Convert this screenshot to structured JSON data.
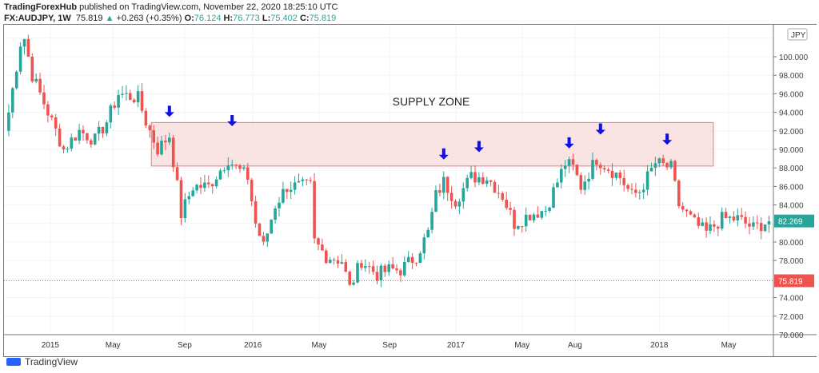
{
  "header": {
    "line1_author": "TradingForexHub",
    "line1_rest": " published on TradingView.com, November 22, 2020 18:25:10 UTC",
    "symbol": "FX:AUDJPY, 1W",
    "last": "75.819",
    "change": "+0.263 (+0.35%)",
    "o_label": "O:",
    "o": "76.124",
    "h_label": "H:",
    "h": "76.773",
    "l_label": "L:",
    "l": "75.402",
    "c_label": "C:",
    "c": "75.819"
  },
  "footer": {
    "brand": "TradingView"
  },
  "chart_data": {
    "type": "candlestick",
    "title": "FX:AUDJPY, 1W",
    "currency": "JPY",
    "ylim": [
      70,
      102
    ],
    "y_ticks": [
      "100.000",
      "98.000",
      "96.000",
      "94.000",
      "92.000",
      "90.000",
      "88.000",
      "86.000",
      "84.000",
      "80.000",
      "78.000",
      "74.000",
      "72.000",
      "70.000"
    ],
    "y_tick_values": [
      100,
      98,
      96,
      94,
      92,
      90,
      88,
      86,
      84,
      80,
      78,
      74,
      72,
      70
    ],
    "x_ticks": [
      {
        "label": "2015",
        "week": 11.6
      },
      {
        "label": "May",
        "week": 27.6
      },
      {
        "label": "Sep",
        "week": 45.9
      },
      {
        "label": "2016",
        "week": 63.3
      },
      {
        "label": "May",
        "week": 80.2
      },
      {
        "label": "Sep",
        "week": 98.2
      },
      {
        "label": "2017",
        "week": 115.1
      },
      {
        "label": "May",
        "week": 132
      },
      {
        "label": "Aug",
        "week": 145.5
      },
      {
        "label": "2018",
        "week": 167
      },
      {
        "label": "May",
        "week": 184.7
      }
    ],
    "price_path_week_close": [
      [
        0,
        92
      ],
      [
        1,
        94
      ],
      [
        4,
        101.5
      ],
      [
        5,
        102
      ],
      [
        7,
        98
      ],
      [
        8,
        97
      ],
      [
        14,
        91
      ],
      [
        15,
        90
      ],
      [
        19,
        92
      ],
      [
        23,
        91
      ],
      [
        26,
        93
      ],
      [
        29,
        96
      ],
      [
        34,
        95.5
      ],
      [
        36,
        93
      ],
      [
        39,
        90
      ],
      [
        42,
        91.5
      ],
      [
        44,
        86
      ],
      [
        45,
        83
      ],
      [
        48,
        86
      ],
      [
        52,
        86
      ],
      [
        57,
        89
      ],
      [
        59,
        88
      ],
      [
        62,
        87
      ],
      [
        64,
        82
      ],
      [
        66,
        79.5
      ],
      [
        69,
        84
      ],
      [
        72,
        86
      ],
      [
        78,
        86
      ],
      [
        79,
        80
      ],
      [
        82,
        78.5
      ],
      [
        86,
        78
      ],
      [
        88,
        75
      ],
      [
        91,
        78
      ],
      [
        95,
        76.5
      ],
      [
        98,
        77
      ],
      [
        101,
        77
      ],
      [
        105,
        78.5
      ],
      [
        108,
        81
      ],
      [
        110,
        85
      ],
      [
        112,
        86.5
      ],
      [
        115,
        84.5
      ],
      [
        119,
        87
      ],
      [
        123,
        87
      ],
      [
        127,
        85
      ],
      [
        130,
        82
      ],
      [
        134,
        83
      ],
      [
        138,
        83.5
      ],
      [
        140,
        85.5
      ],
      [
        143,
        88.5
      ],
      [
        145,
        88
      ],
      [
        147,
        86
      ],
      [
        151,
        89
      ],
      [
        154,
        88
      ],
      [
        157,
        87
      ],
      [
        160,
        85
      ],
      [
        162,
        85.5
      ],
      [
        166,
        88.5
      ],
      [
        170,
        88
      ],
      [
        172,
        84
      ],
      [
        176,
        82
      ],
      [
        179,
        81
      ],
      [
        183,
        82.5
      ],
      [
        187,
        82.5
      ],
      [
        191,
        81.5
      ],
      [
        195,
        82.3
      ]
    ],
    "supply_zone": {
      "label": "SUPPLY ZONE",
      "week_start": 37.4,
      "week_end": 180.8,
      "price_low": 88.2,
      "price_high": 92.9
    },
    "arrows": [
      {
        "week": 42,
        "price": 93.5
      },
      {
        "week": 58,
        "price": 92.5
      },
      {
        "week": 112,
        "price": 88.9
      },
      {
        "week": 121,
        "price": 89.7
      },
      {
        "week": 144,
        "price": 90.1
      },
      {
        "week": 152,
        "price": 91.6
      },
      {
        "week": 169,
        "price": 90.5
      }
    ],
    "last_bar_price": {
      "label": "82.269",
      "value": 82.269
    },
    "current_price": {
      "label": "75.819",
      "value": 75.819
    },
    "colors": {
      "up": "#26a69a",
      "down": "#ef5350",
      "zone": "#f8d7d7",
      "arrow": "#1010e0"
    }
  }
}
